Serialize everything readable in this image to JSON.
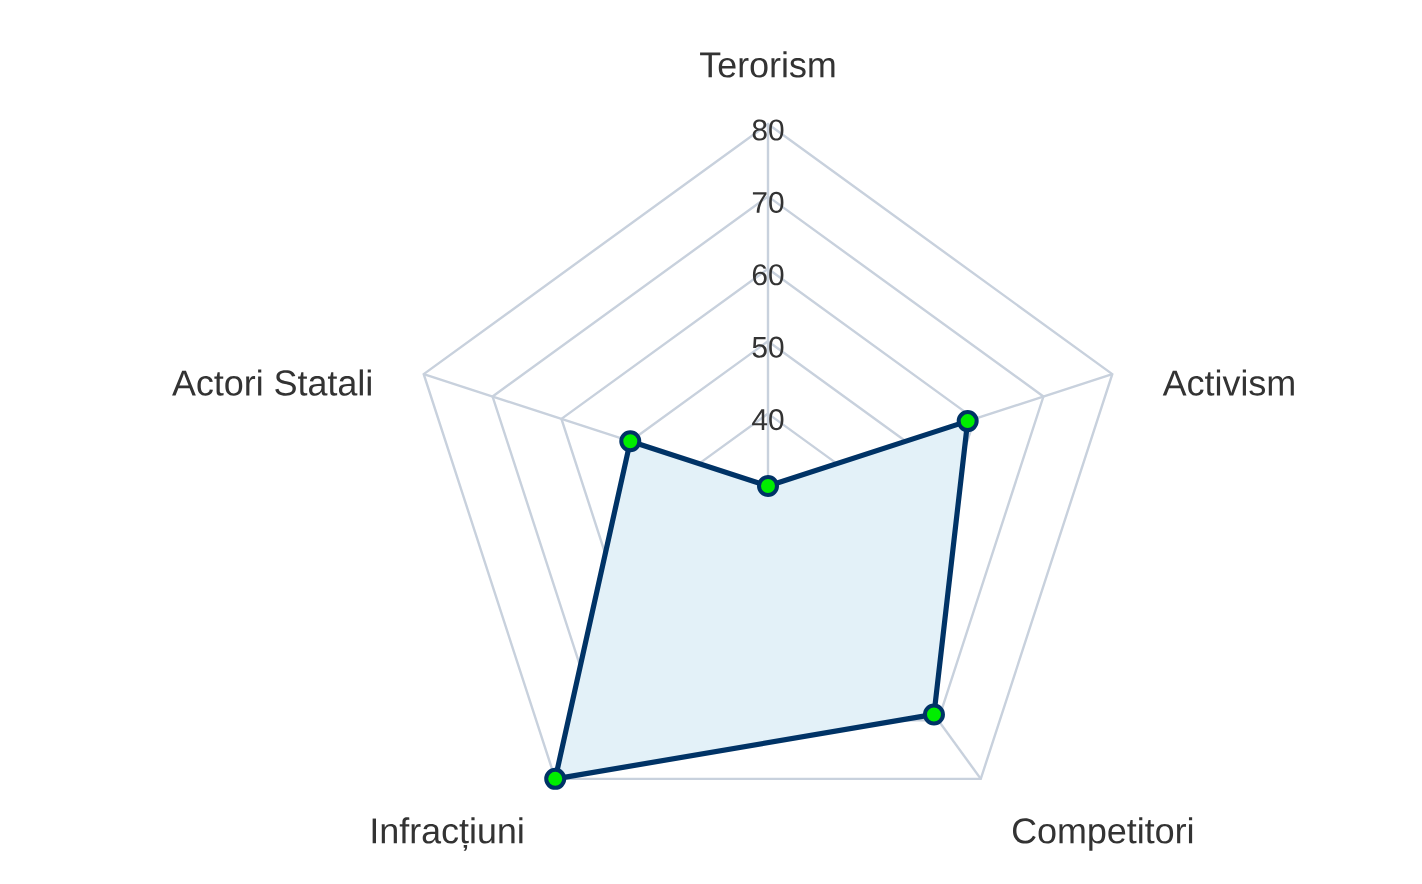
{
  "chart_data": {
    "type": "radar",
    "categories": [
      "Terorism",
      "Activism",
      "Competitori",
      "Infracțiuni",
      "Actori Statali"
    ],
    "series": [
      {
        "color": "#003366",
        "values": [
          30,
          59,
          69,
          80,
          50
        ]
      }
    ],
    "ylim": [
      30,
      80
    ],
    "yticks": [
      40,
      50,
      60,
      70,
      80
    ],
    "grid": true,
    "marker": "circle"
  }
}
